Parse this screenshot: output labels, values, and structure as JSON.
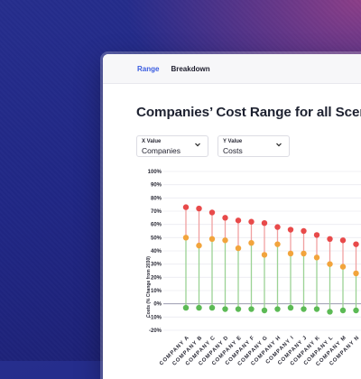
{
  "tabs": [
    {
      "label": "Range",
      "active": true
    },
    {
      "label": "Breakdown",
      "active": false
    }
  ],
  "page_title": "Companies’ Cost Range for all Scenarios",
  "controls": {
    "x": {
      "label": "X Value",
      "value": "Companies"
    },
    "y": {
      "label": "Y Value",
      "value": "Costs"
    }
  },
  "colors": {
    "high": "#e84a4a",
    "mid": "#f2a43c",
    "low": "#5cba55",
    "link_high": "#f0a0a0",
    "link_low": "#9bd394",
    "grid": "#ececf1",
    "zero_line": "#9b9bb0"
  },
  "chart_data": {
    "type": "scatter",
    "variant": "dumbbell",
    "ylabel": "Costs (% Change from 2030)",
    "ylim": [
      -20,
      100
    ],
    "yticks": [
      100,
      90,
      80,
      70,
      60,
      50,
      40,
      30,
      20,
      10,
      0,
      -10,
      -20
    ],
    "ytick_labels": [
      "100%",
      "90%",
      "80%",
      "70%",
      "60%",
      "50%",
      "40%",
      "30%",
      "20%",
      "10%",
      "0%",
      "-10%",
      "-20%"
    ],
    "grid": true,
    "categories": [
      "COMPANY A",
      "COMPANY B",
      "COMPANY C",
      "COMPANY D",
      "COMPANY E",
      "COMPANY F",
      "COMPANY G",
      "COMPANY H",
      "COMPANY I",
      "COMPANY J",
      "COMPANY K",
      "COMPANY L",
      "COMPANY M",
      "COMPANY N"
    ],
    "series": [
      {
        "values": [
          73,
          72,
          69,
          65,
          63,
          62,
          61,
          58,
          56,
          55,
          52,
          49,
          48,
          45
        ]
      },
      {
        "values": [
          50,
          44,
          49,
          48,
          42,
          46,
          37,
          45,
          38,
          38,
          35,
          30,
          28,
          23
        ]
      },
      {
        "values": [
          -3,
          -3,
          -3,
          -4,
          -4,
          -4,
          -5,
          -4,
          -3,
          -4,
          -4,
          -6,
          -5,
          -5
        ]
      }
    ]
  }
}
